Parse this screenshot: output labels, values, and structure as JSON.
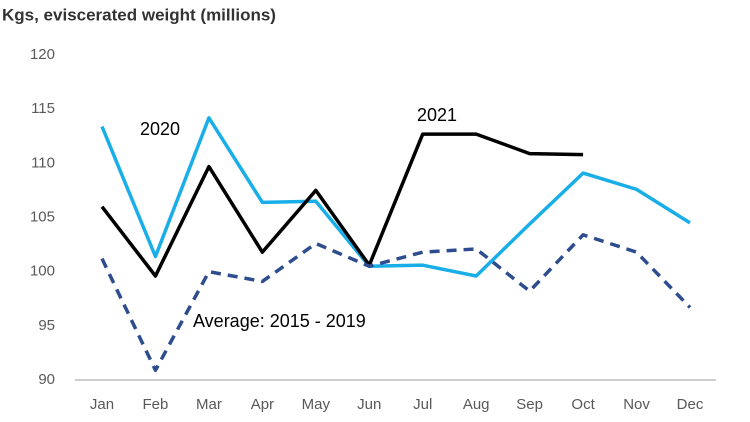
{
  "chart_data": {
    "type": "line",
    "title": "Kgs, eviscerated weight (millions)",
    "categories": [
      "Jan",
      "Feb",
      "Mar",
      "Apr",
      "May",
      "Jun",
      "Jul",
      "Aug",
      "Sep",
      "Oct",
      "Nov",
      "Dec"
    ],
    "series": [
      {
        "name": "2020",
        "color": "#1aaee8",
        "dashed": false,
        "values": [
          113.4,
          101.4,
          114.2,
          106.4,
          106.5,
          100.5,
          100.6,
          99.6,
          104.4,
          109.1,
          107.6,
          104.5
        ]
      },
      {
        "name": "2021",
        "color": "#000000",
        "dashed": false,
        "values": [
          106,
          99.6,
          109.7,
          101.8,
          107.5,
          100.6,
          112.7,
          112.7,
          110.9,
          110.8,
          null,
          null
        ]
      },
      {
        "name": "Average: 2015 - 2019",
        "color": "#2e4d8e",
        "dashed": true,
        "values": [
          101.2,
          90.9,
          100,
          99.1,
          102.6,
          100.5,
          101.8,
          102.1,
          98.2,
          103.4,
          101.8,
          96.7
        ]
      }
    ],
    "ylim": [
      90,
      120
    ],
    "yticks": [
      90,
      95,
      100,
      105,
      110,
      115,
      120
    ],
    "grid": false
  }
}
